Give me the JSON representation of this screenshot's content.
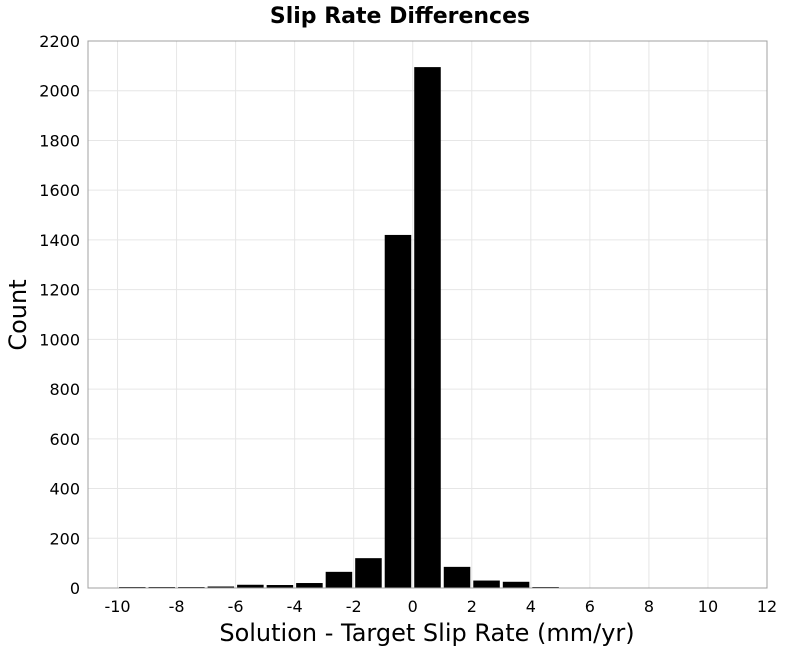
{
  "chart_data": {
    "type": "bar",
    "title": "Slip Rate Differences",
    "xlabel": "Solution - Target Slip Rate (mm/yr)",
    "ylabel": "Count",
    "xlim": [
      -11,
      12
    ],
    "ylim": [
      0,
      2200
    ],
    "x_ticks": [
      -10,
      -8,
      -6,
      -4,
      -2,
      0,
      2,
      4,
      6,
      8,
      10,
      12
    ],
    "y_ticks": [
      0,
      200,
      400,
      600,
      800,
      1000,
      1200,
      1400,
      1600,
      1800,
      2000,
      2200
    ],
    "bin_width": 1,
    "grid": true,
    "bar_color": "#000000",
    "bins": [
      {
        "x": -9.5,
        "value": 3
      },
      {
        "x": -8.5,
        "value": 2
      },
      {
        "x": -7.5,
        "value": 2
      },
      {
        "x": -6.5,
        "value": 6
      },
      {
        "x": -5.5,
        "value": 13
      },
      {
        "x": -4.5,
        "value": 12
      },
      {
        "x": -3.5,
        "value": 20
      },
      {
        "x": -2.5,
        "value": 65
      },
      {
        "x": -1.5,
        "value": 120
      },
      {
        "x": -0.5,
        "value": 1420
      },
      {
        "x": 0.5,
        "value": 2095
      },
      {
        "x": 1.5,
        "value": 85
      },
      {
        "x": 2.5,
        "value": 30
      },
      {
        "x": 3.5,
        "value": 25
      },
      {
        "x": 4.5,
        "value": 3
      }
    ]
  }
}
